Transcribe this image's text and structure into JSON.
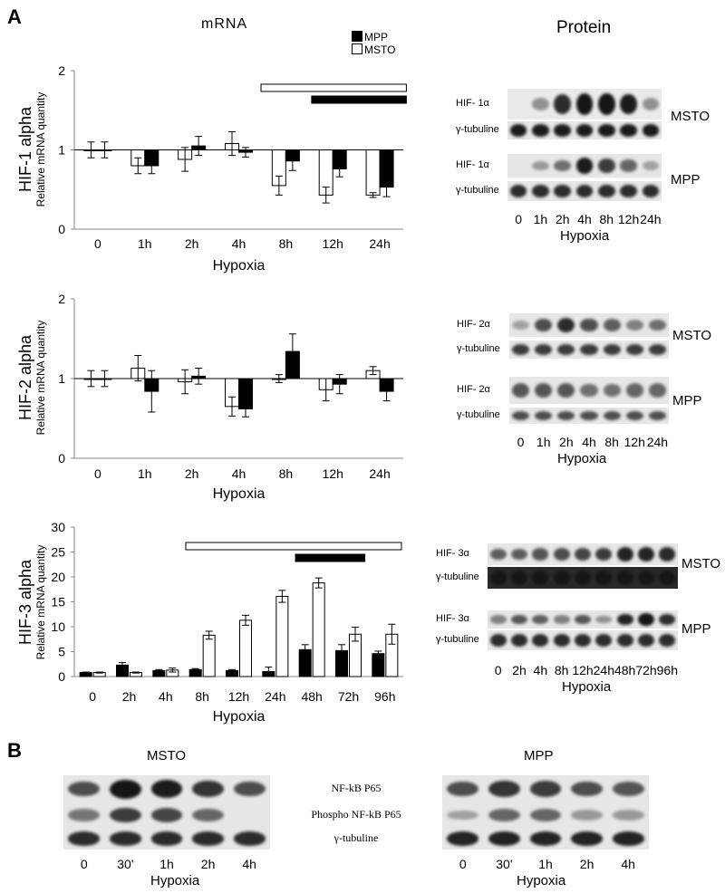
{
  "panel_a_letter": "A",
  "panel_b_letter": "B",
  "mrna_title": "mRNA",
  "protein_title": "Protein",
  "legend": [
    {
      "label": "MPP",
      "color": "#000000"
    },
    {
      "label": "MSTO",
      "color": "#ffffff"
    }
  ],
  "colors": {
    "mpp": "#000000",
    "msto": "#ffffff"
  },
  "ylabel": "Relative mRNA quantity",
  "xlabel": "Hypoxia",
  "chart_data": [
    {
      "type": "bar",
      "title": "HIF-1 alpha",
      "ylabel": "Relative mRNA quantity",
      "xlabel": "Hypoxia",
      "categories": [
        "0",
        "1h",
        "2h",
        "4h",
        "8h",
        "12h",
        "24h"
      ],
      "ylim": [
        0,
        2
      ],
      "yticks": [
        "0",
        "1",
        "2"
      ],
      "reference_line": 1,
      "series": [
        {
          "name": "MSTO",
          "values": [
            1.0,
            0.8,
            0.88,
            1.08,
            0.55,
            0.43,
            0.43
          ],
          "errors": [
            0.1,
            0.1,
            0.15,
            0.15,
            0.12,
            0.1,
            0.03
          ]
        },
        {
          "name": "MPP",
          "values": [
            1.0,
            0.8,
            1.05,
            0.97,
            0.86,
            0.76,
            0.53
          ],
          "errors": [
            0.1,
            0.1,
            0.12,
            0.06,
            0.12,
            0.1,
            0.12
          ]
        }
      ],
      "bars_of_significance": [
        {
          "series": "MSTO",
          "from": "8h",
          "to": "24h"
        },
        {
          "series": "MPP",
          "from": "12h",
          "to": "24h"
        }
      ]
    },
    {
      "type": "bar",
      "title": "HIF-2 alpha",
      "ylabel": "Relative mRNA quantity",
      "xlabel": "Hypoxia",
      "categories": [
        "0",
        "1h",
        "2h",
        "4h",
        "8h",
        "12h",
        "24h"
      ],
      "ylim": [
        0,
        2
      ],
      "yticks": [
        "0",
        "1",
        "2"
      ],
      "reference_line": 1,
      "series": [
        {
          "name": "MSTO",
          "values": [
            1.0,
            1.13,
            0.96,
            0.65,
            1.0,
            0.86,
            1.1
          ],
          "errors": [
            0.1,
            0.16,
            0.15,
            0.12,
            0.05,
            0.14,
            0.05
          ]
        },
        {
          "name": "MPP",
          "values": [
            1.0,
            0.84,
            1.03,
            0.62,
            1.34,
            0.93,
            0.84
          ],
          "errors": [
            0.1,
            0.26,
            0.1,
            0.1,
            0.22,
            0.12,
            0.12
          ]
        }
      ]
    },
    {
      "type": "bar",
      "title": "HIF-3 alpha",
      "ylabel": "Relative mRNA quantity",
      "xlabel": "Hypoxia",
      "categories": [
        "0",
        "2h",
        "4h",
        "8h",
        "12h",
        "24h",
        "48h",
        "72h",
        "96h"
      ],
      "ylim": [
        0,
        30
      ],
      "yticks": [
        "0",
        "5",
        "10",
        "15",
        "20",
        "25",
        "30"
      ],
      "series": [
        {
          "name": "MPP",
          "values": [
            0.8,
            2.3,
            1.2,
            1.4,
            1.2,
            1.0,
            5.4,
            5.2,
            4.6
          ],
          "errors": [
            0.1,
            0.5,
            0.2,
            0.2,
            0.2,
            0.9,
            1.0,
            1.2,
            0.5
          ]
        },
        {
          "name": "MSTO",
          "values": [
            0.8,
            0.8,
            1.3,
            8.3,
            11.3,
            16.1,
            18.8,
            8.5,
            8.5
          ],
          "errors": [
            0.1,
            0.1,
            0.4,
            0.8,
            1.0,
            1.2,
            1.0,
            1.4,
            2.0
          ]
        }
      ],
      "bars_of_significance": [
        {
          "series": "MSTO",
          "from": "8h",
          "to": "96h"
        },
        {
          "series": "MPP",
          "from": "48h",
          "to": "72h"
        }
      ]
    }
  ],
  "blots": {
    "hif1": {
      "bands": [
        "HIF- 1α",
        "γ-tubuline",
        "HIF- 1α",
        "γ-tubuline"
      ],
      "cells": [
        "MSTO",
        "MPP"
      ],
      "lanes": [
        "0",
        "1h",
        "2h",
        "4h",
        "8h",
        "12h",
        "24h"
      ],
      "hypoxia": "Hypoxia"
    },
    "hif2": {
      "bands": [
        "HIF- 2α",
        "γ-tubuline",
        "HIF- 2α",
        "γ-tubuline"
      ],
      "cells": [
        "MSTO",
        "MPP"
      ],
      "lanes": [
        "0",
        "1h",
        "2h",
        "4h",
        "8h",
        "12h",
        "24h"
      ],
      "hypoxia": "Hypoxia"
    },
    "hif3": {
      "bands": [
        "HIF- 3α",
        "γ-tubuline",
        "HIF- 3α",
        "γ-tubuline"
      ],
      "cells": [
        "MSTO",
        "MPP"
      ],
      "lanes": [
        "0",
        "2h",
        "4h",
        "8h",
        "12h",
        "24h",
        "48h",
        "72h",
        "96h"
      ],
      "hypoxia": "Hypoxia"
    }
  },
  "panel_b": {
    "msto_title": "MSTO",
    "mpp_title": "MPP",
    "bands": [
      "NF-kB P65",
      "Phospho NF-kB P65",
      "γ-tubuline"
    ],
    "lanes": [
      "0",
      "30'",
      "1h",
      "2h",
      "4h"
    ],
    "hypoxia": "Hypoxia"
  }
}
